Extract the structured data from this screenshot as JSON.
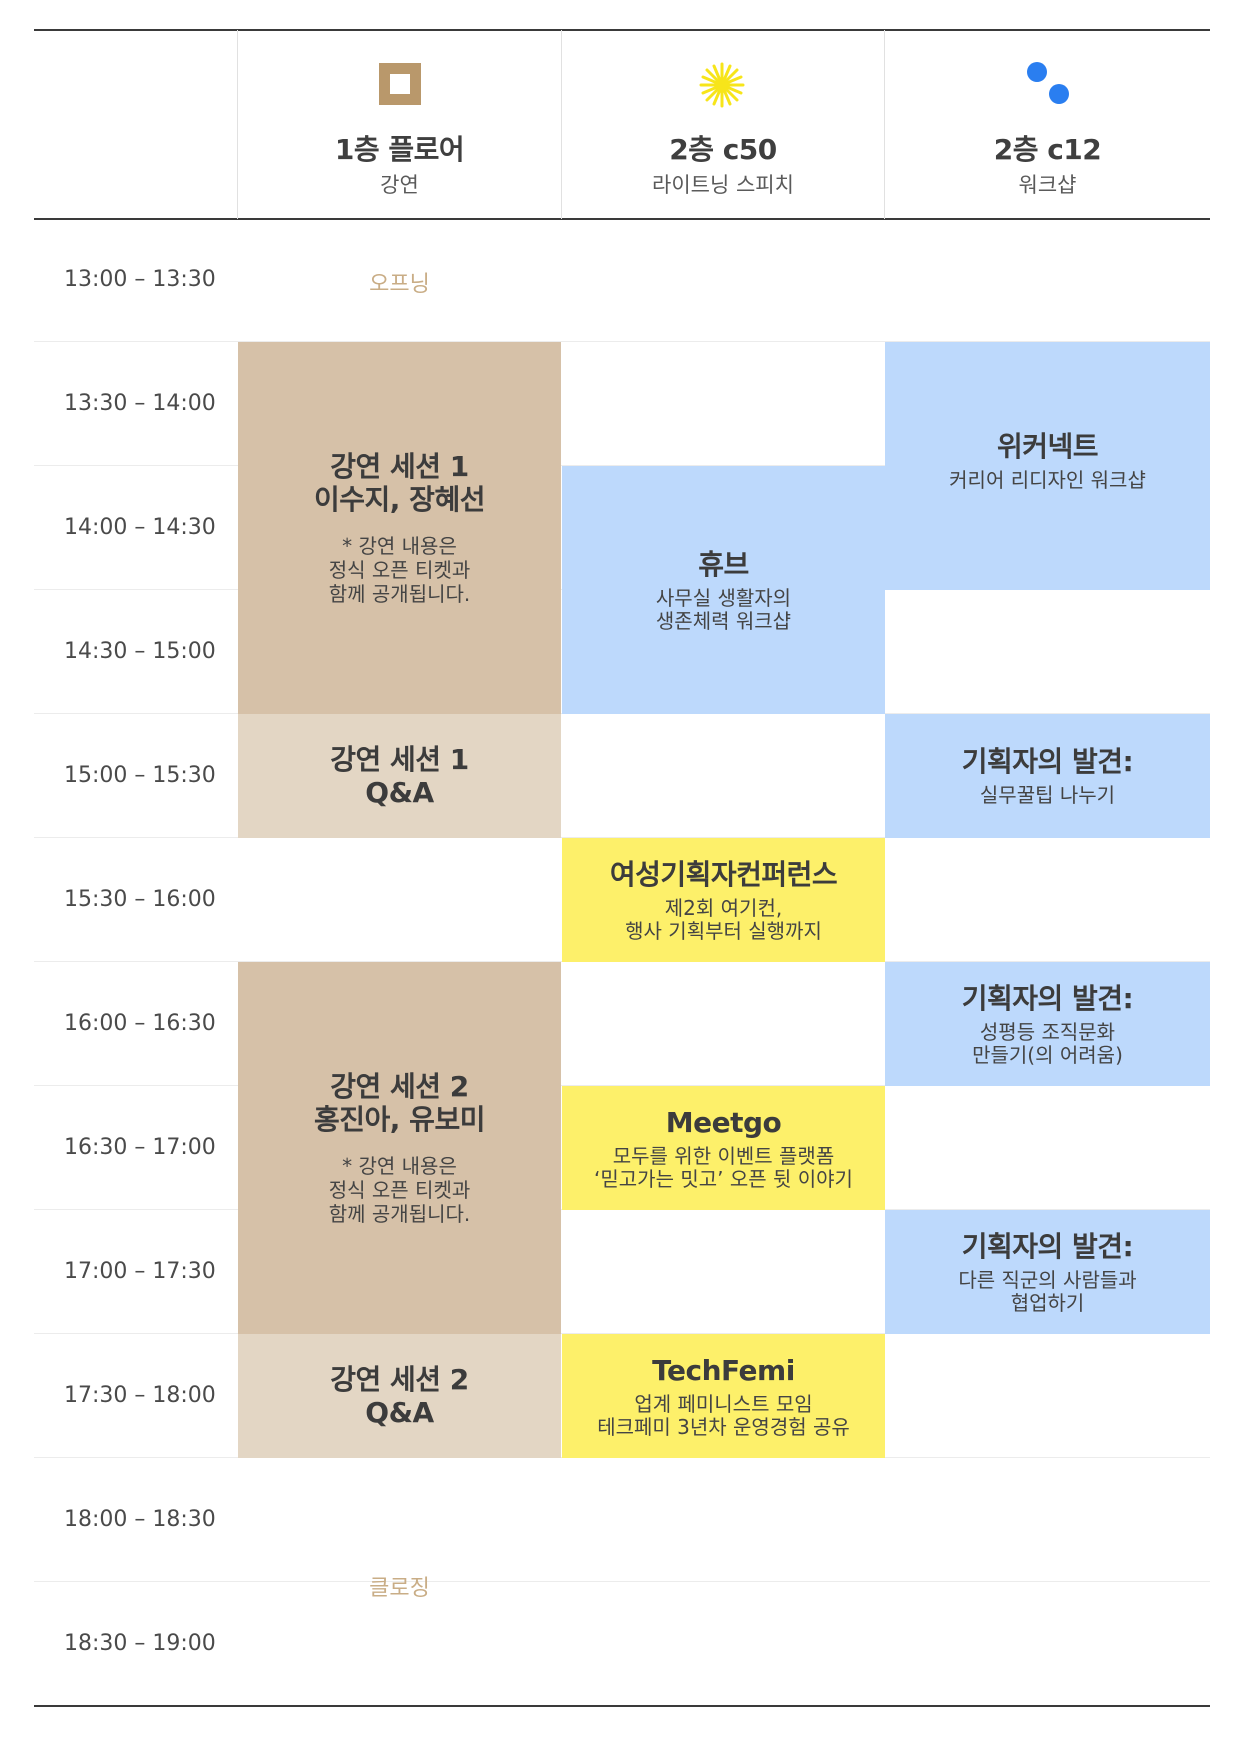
{
  "columns": [
    {
      "venue": "1층 플로어",
      "type": "강연",
      "icon": "square-icon",
      "color": "#b9986b"
    },
    {
      "venue": "2층 c50",
      "type": "라이트닝 스피치",
      "icon": "sun-icon",
      "color": "#f7e51a"
    },
    {
      "venue": "2층 c12",
      "type": "워크샵",
      "icon": "dots-icon",
      "color": "#2a7ef0"
    }
  ],
  "times": [
    "13:00 – 13:30",
    "13:30 – 14:00",
    "14:00 – 14:30",
    "14:30 – 15:00",
    "15:00 – 15:30",
    "15:30 – 16:00",
    "16:00 – 16:30",
    "16:30 – 17:00",
    "17:00 – 17:30",
    "17:30 – 18:00",
    "18:00 – 18:30",
    "18:30 – 19:00"
  ],
  "opening": "오프닝",
  "closing": "클로징",
  "sessions": {
    "talk1": {
      "title": "강연 세션 1\n이수지, 장혜선",
      "note": "* 강연 내용은\n정식 오픈 티켓과\n함께 공개됩니다."
    },
    "talk1_qa": {
      "title": "강연 세션 1\nQ&A"
    },
    "talk2": {
      "title": "강연 세션 2\n홍진아, 유보미",
      "note": "* 강연 내용은\n정식 오픈 티켓과\n함께 공개됩니다."
    },
    "talk2_qa": {
      "title": "강연 세션 2\nQ&A"
    },
    "hub": {
      "title": "휴브",
      "sub": "사무실 생활자의\n생존체력 워크샵"
    },
    "wcf": {
      "title": "여성기획자컨퍼런스",
      "sub": "제2회 여기컨,\n행사 기획부터 실행까지"
    },
    "meetgo": {
      "title": "Meetgo",
      "sub": "모두를 위한 이벤트 플랫폼\n‘믿고가는 밋고’ 오픈 뒷 이야기"
    },
    "techfemi": {
      "title": "TechFemi",
      "sub": "업계 페미니스트 모임\n테크페미 3년차 운영경험 공유"
    },
    "weconnect": {
      "title": "위커넥트",
      "sub": "커리어 리디자인 워크샵"
    },
    "discover1": {
      "title": "기획자의 발견:",
      "sub": "실무꿀팁 나누기"
    },
    "discover2": {
      "title": "기획자의 발견:",
      "sub": "성평등 조직문화\n만들기(의 어려움)"
    },
    "discover3": {
      "title": "기획자의 발견:",
      "sub": "다른 직군의 사람들과\n협업하기"
    }
  }
}
